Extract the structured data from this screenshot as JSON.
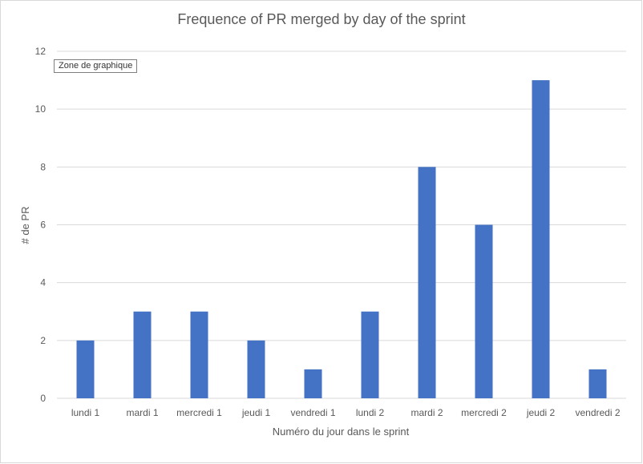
{
  "tooltip": "Zone de graphique",
  "chart_data": {
    "type": "bar",
    "title": "Frequence of PR merged by day of the sprint",
    "xlabel": "Numéro du jour dans le sprint",
    "ylabel": "# de PR",
    "categories": [
      "lundi 1",
      "mardi 1",
      "mercredi 1",
      "jeudi 1",
      "vendredi 1",
      "lundi 2",
      "mardi 2",
      "mercredi 2",
      "jeudi 2",
      "vendredi 2"
    ],
    "values": [
      2,
      3,
      3,
      2,
      1,
      3,
      8,
      6,
      11,
      1
    ],
    "ylim": [
      0,
      12
    ],
    "yticks": [
      "0",
      "2",
      "4",
      "6",
      "8",
      "10",
      "12"
    ],
    "grid": true,
    "legend": "none",
    "bar_color": "#4472c4"
  }
}
